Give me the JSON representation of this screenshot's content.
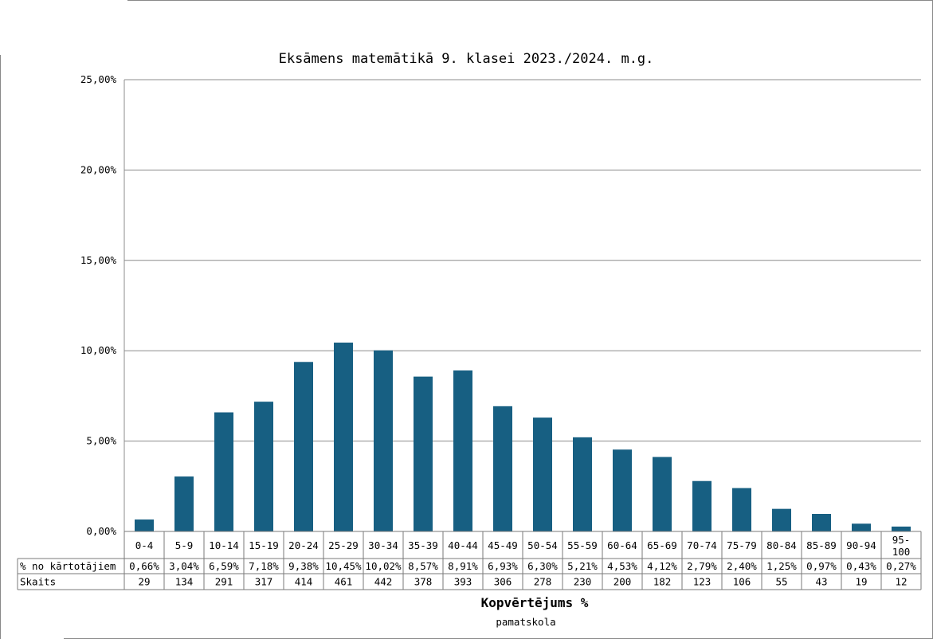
{
  "chart_data": {
    "type": "bar",
    "title": "Eksāmens matemātikā 9. klasei 2023./2024. m.g.",
    "xlabel": "Kopvērtējums %",
    "subtitle": "pamatskola",
    "ylim": [
      0,
      25
    ],
    "yticks": [
      "0,00%",
      "5,00%",
      "10,00%",
      "15,00%",
      "20,00%",
      "25,00%"
    ],
    "categories": [
      "0-4",
      "5-9",
      "10-14",
      "15-19",
      "20-24",
      "25-29",
      "30-34",
      "35-39",
      "40-44",
      "45-49",
      "50-54",
      "55-59",
      "60-64",
      "65-69",
      "70-74",
      "75-79",
      "80-84",
      "85-89",
      "90-94",
      "95-100"
    ],
    "category_lines": [
      [
        "0-4"
      ],
      [
        "5-9"
      ],
      [
        "10-14"
      ],
      [
        "15-19"
      ],
      [
        "20-24"
      ],
      [
        "25-29"
      ],
      [
        "30-34"
      ],
      [
        "35-39"
      ],
      [
        "40-44"
      ],
      [
        "45-49"
      ],
      [
        "50-54"
      ],
      [
        "55-59"
      ],
      [
        "60-64"
      ],
      [
        "65-69"
      ],
      [
        "70-74"
      ],
      [
        "75-79"
      ],
      [
        "80-84"
      ],
      [
        "85-89"
      ],
      [
        "90-94"
      ],
      [
        "95-",
        "100"
      ]
    ],
    "values": [
      0.66,
      3.04,
      6.59,
      7.18,
      9.38,
      10.45,
      10.02,
      8.57,
      8.91,
      6.93,
      6.3,
      5.21,
      4.53,
      4.12,
      2.79,
      2.4,
      1.25,
      0.97,
      0.43,
      0.27
    ],
    "grid": true,
    "bar_color": "#175f82",
    "table": {
      "rows": [
        {
          "label": "% no kārtotājiem",
          "cells": [
            "0,66%",
            "3,04%",
            "6,59%",
            "7,18%",
            "9,38%",
            "10,45%",
            "10,02%",
            "8,57%",
            "8,91%",
            "6,93%",
            "6,30%",
            "5,21%",
            "4,53%",
            "4,12%",
            "2,79%",
            "2,40%",
            "1,25%",
            "0,97%",
            "0,43%",
            "0,27%"
          ]
        },
        {
          "label": "Skaits",
          "cells": [
            "29",
            "134",
            "291",
            "317",
            "414",
            "461",
            "442",
            "378",
            "393",
            "306",
            "278",
            "230",
            "200",
            "182",
            "123",
            "106",
            "55",
            "43",
            "19",
            "12"
          ]
        }
      ]
    }
  }
}
